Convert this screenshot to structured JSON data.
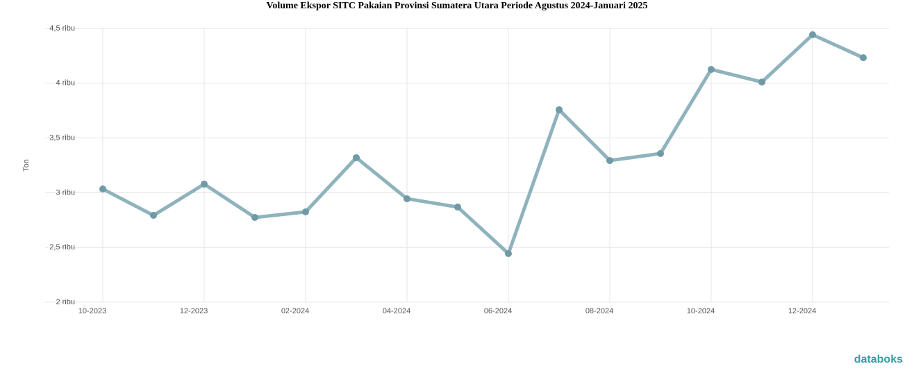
{
  "chart_data": {
    "type": "line",
    "title": "Volume Ekspor SITC Pakaian Provinsi Sumatera Utara Periode Agustus 2024-Januari 2025",
    "y_label": "Ton",
    "categories": [
      "10-2023",
      null,
      "12-2023",
      null,
      "02-2024",
      null,
      "04-2024",
      null,
      "06-2024",
      null,
      "08-2024",
      null,
      "10-2024",
      null,
      "12-2024",
      null
    ],
    "series": [
      {
        "name": "Volume",
        "color": "#8fb3bd",
        "values": [
          3034,
          2793,
          3079,
          2774,
          2825,
          3320,
          2945,
          2869,
          2444,
          3758,
          3294,
          3358,
          4126,
          4011,
          4443,
          4233
        ]
      }
    ],
    "ylim": [
      2000,
      4500
    ],
    "yticks": [
      {
        "value": 2000,
        "label": "2 ribu"
      },
      {
        "value": 2500,
        "label": "2,5 ribu"
      },
      {
        "value": 3000,
        "label": "3 ribu"
      },
      {
        "value": 3500,
        "label": "3,5 ribu"
      },
      {
        "value": 4000,
        "label": "4 ribu"
      },
      {
        "value": 4500,
        "label": "4,5 ribu"
      }
    ],
    "grid": true,
    "brand": "databoks"
  }
}
